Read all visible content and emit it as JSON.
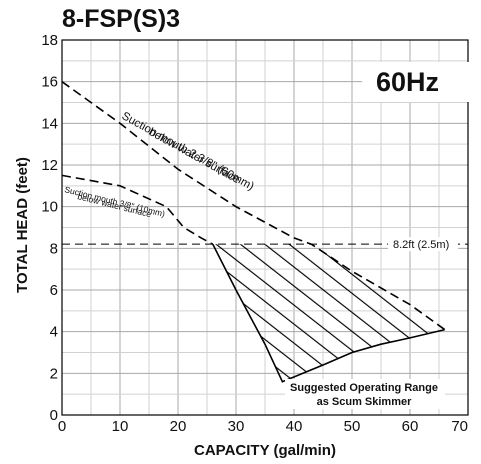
{
  "chart_data": {
    "type": "line",
    "title": "8-FSP(S)3",
    "frequency_label": "60Hz",
    "xlabel": "CAPACITY (gal/min)",
    "ylabel": "TOTAL HEAD (feet)",
    "xlim": [
      0,
      70
    ],
    "ylim": [
      0,
      18
    ],
    "x_ticks": [
      0,
      10,
      20,
      30,
      40,
      50,
      60,
      70
    ],
    "y_ticks": [
      0,
      2,
      4,
      6,
      8,
      10,
      12,
      14,
      16,
      18
    ],
    "x_tick_labels": [
      "0",
      "10",
      "20",
      "30",
      "40",
      "50",
      "60",
      "70"
    ],
    "y_tick_labels": [
      "0",
      "2",
      "4",
      "6",
      "8",
      "10",
      "12",
      "14",
      "16",
      "18"
    ],
    "grid": true,
    "series": [
      {
        "label": "Suction mouth 2 3/8\" (60mm) below water surface",
        "style": "dashed",
        "x": [
          0,
          10,
          20,
          30,
          40,
          43,
          50,
          60,
          66
        ],
        "y": [
          16.0,
          14.0,
          11.8,
          10.0,
          8.5,
          8.2,
          6.9,
          5.3,
          4.1
        ]
      },
      {
        "label": "Suction mouth 3/8\" (10mm) below water surface",
        "style": "dashed",
        "x": [
          0,
          10,
          18,
          21,
          24,
          26
        ],
        "y": [
          11.5,
          11.0,
          10.0,
          9.0,
          8.5,
          8.2
        ]
      },
      {
        "label": "Suggested Operating Range as Scum Skimmer",
        "style": "hatched-region",
        "x": [
          26,
          30,
          35,
          38,
          45,
          50,
          55,
          60,
          66,
          43
        ],
        "y": [
          8.2,
          6.0,
          3.4,
          1.6,
          2.4,
          3.0,
          3.4,
          3.7,
          4.1,
          8.2
        ]
      }
    ],
    "reference_line": {
      "y": 8.2,
      "label": "8.2ft (2.5m)",
      "style": "dashed"
    },
    "annotations": [
      {
        "text": "Suction mouth 2 3/8\" (60mm)"
      },
      {
        "text": "below water surface"
      },
      {
        "text": "Suction mouth 3/8\" (10mm)"
      },
      {
        "text": "below water surface"
      },
      {
        "text": "Suggested Operating Range"
      },
      {
        "text": "as Scum Skimmer"
      }
    ]
  }
}
